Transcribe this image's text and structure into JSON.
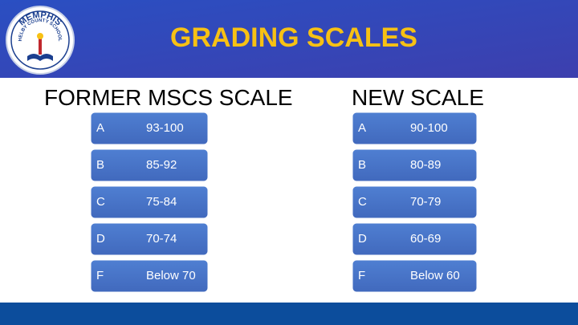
{
  "header": {
    "title": "GRADING SCALES",
    "logo": {
      "name": "MEMPHIS",
      "subtitle": "SHELBY COUNTY SCHOOLS"
    }
  },
  "columns": [
    {
      "title": "FORMER MSCS SCALE",
      "rows": [
        [
          "A",
          "93-100"
        ],
        [
          "B",
          "85-92"
        ],
        [
          "C",
          "75-84"
        ],
        [
          "D",
          "70-74"
        ],
        [
          "F",
          "Below 70"
        ]
      ]
    },
    {
      "title": "NEW SCALE",
      "rows": [
        [
          "A",
          "90-100"
        ],
        [
          "B",
          "80-89"
        ],
        [
          "C",
          "70-79"
        ],
        [
          "D",
          "60-69"
        ],
        [
          "F",
          "Below 60"
        ]
      ]
    }
  ]
}
